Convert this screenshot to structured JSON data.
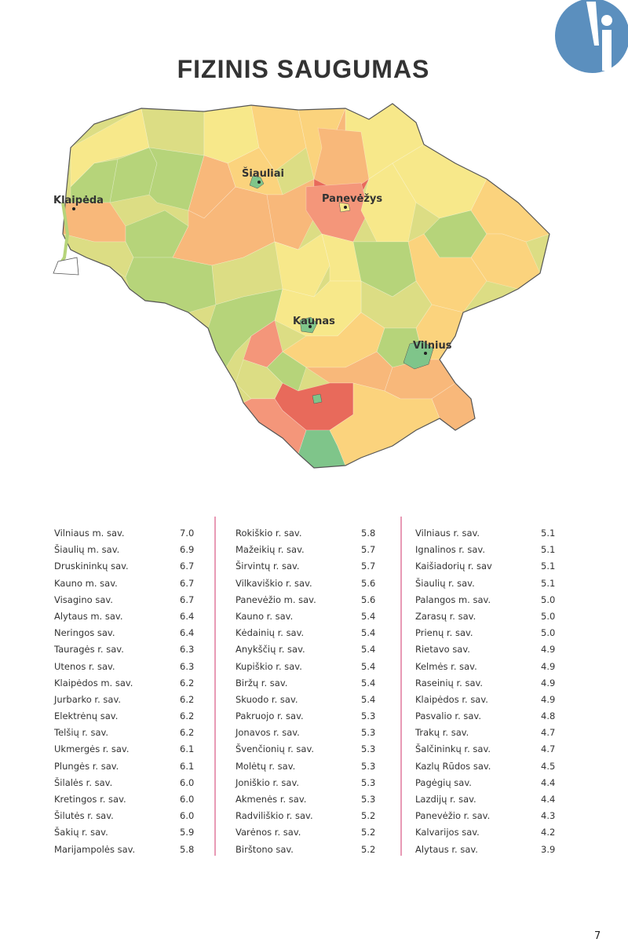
{
  "title": "FIZINIS SAUGUMAS",
  "page_number": "7",
  "colors": {
    "logo": "#5b8fbe",
    "divider": "#e89ab5",
    "scale": [
      "#e86a5b",
      "#f4967a",
      "#f8b87a",
      "#fbd37d",
      "#f7e88a",
      "#dcdd84",
      "#b6d47a",
      "#7fc58a"
    ]
  },
  "map": {
    "cities": [
      "Šiauliai",
      "Panevėžys",
      "Klaipėda",
      "Kaunas",
      "Vilnius"
    ]
  },
  "columns": [
    [
      {
        "name": "Vilniaus m. sav.",
        "value": "7.0"
      },
      {
        "name": "Šiaulių m. sav.",
        "value": "6.9"
      },
      {
        "name": "Druskininkų sav.",
        "value": "6.7"
      },
      {
        "name": "Kauno m. sav.",
        "value": "6.7"
      },
      {
        "name": "Visagino sav.",
        "value": "6.7"
      },
      {
        "name": "Alytaus m. sav.",
        "value": "6.4"
      },
      {
        "name": "Neringos sav.",
        "value": "6.4"
      },
      {
        "name": "Tauragės r. sav.",
        "value": "6.3"
      },
      {
        "name": "Utenos r. sav.",
        "value": "6.3"
      },
      {
        "name": "Klaipėdos m. sav.",
        "value": "6.2"
      },
      {
        "name": "Jurbarko r. sav.",
        "value": "6.2"
      },
      {
        "name": "Elektrėnų sav.",
        "value": "6.2"
      },
      {
        "name": "Telšių r. sav.",
        "value": "6.2"
      },
      {
        "name": "Ukmergės r. sav.",
        "value": "6.1"
      },
      {
        "name": "Plungės r. sav.",
        "value": "6.1"
      },
      {
        "name": "Šilalės r. sav.",
        "value": "6.0"
      },
      {
        "name": "Kretingos r. sav.",
        "value": "6.0"
      },
      {
        "name": "Šilutės r. sav.",
        "value": "6.0"
      },
      {
        "name": "Šakių r. sav.",
        "value": "5.9"
      },
      {
        "name": "Marijampolės sav.",
        "value": "5.8"
      }
    ],
    [
      {
        "name": "Rokiškio r. sav.",
        "value": "5.8"
      },
      {
        "name": "Mažeikių r. sav.",
        "value": "5.7"
      },
      {
        "name": "Širvintų r. sav.",
        "value": "5.7"
      },
      {
        "name": "Vilkaviškio r. sav.",
        "value": "5.6"
      },
      {
        "name": "Panevėžio m. sav.",
        "value": "5.6"
      },
      {
        "name": "Kauno r. sav.",
        "value": "5.4"
      },
      {
        "name": "Kėdainių r. sav.",
        "value": "5.4"
      },
      {
        "name": "Anykščių r. sav.",
        "value": "5.4"
      },
      {
        "name": "Kupiškio r. sav.",
        "value": "5.4"
      },
      {
        "name": "Biržų r. sav.",
        "value": "5.4"
      },
      {
        "name": "Skuodo r. sav.",
        "value": "5.4"
      },
      {
        "name": "Pakruojo r. sav.",
        "value": "5.3"
      },
      {
        "name": "Jonavos r. sav.",
        "value": "5.3"
      },
      {
        "name": "Švenčionių r. sav.",
        "value": "5.3"
      },
      {
        "name": "Molėtų r. sav.",
        "value": "5.3"
      },
      {
        "name": "Joniškio r. sav.",
        "value": "5.3"
      },
      {
        "name": "Akmenės r. sav.",
        "value": "5.3"
      },
      {
        "name": "Radviliškio r. sav.",
        "value": "5.2"
      },
      {
        "name": "Varėnos r. sav.",
        "value": "5.2"
      },
      {
        "name": "Birštono sav.",
        "value": "5.2"
      }
    ],
    [
      {
        "name": "Vilniaus r. sav.",
        "value": "5.1"
      },
      {
        "name": "Ignalinos r. sav.",
        "value": "5.1"
      },
      {
        "name": "Kaišiadorių r. sav",
        "value": "5.1"
      },
      {
        "name": "Šiaulių r. sav.",
        "value": "5.1"
      },
      {
        "name": "Palangos m. sav.",
        "value": "5.0"
      },
      {
        "name": "Zarasų r. sav.",
        "value": "5.0"
      },
      {
        "name": "Prienų r. sav.",
        "value": "5.0"
      },
      {
        "name": "Rietavo sav.",
        "value": "4.9"
      },
      {
        "name": "Kelmės r. sav.",
        "value": "4.9"
      },
      {
        "name": "Raseinių r. sav.",
        "value": "4.9"
      },
      {
        "name": "Klaipėdos r. sav.",
        "value": "4.9"
      },
      {
        "name": "Pasvalio r. sav.",
        "value": "4.8"
      },
      {
        "name": "Trakų r. sav.",
        "value": "4.7"
      },
      {
        "name": "Šalčininkų r. sav.",
        "value": "4.7"
      },
      {
        "name": "Kazlų Rūdos sav.",
        "value": "4.5"
      },
      {
        "name": "Pagėgių sav.",
        "value": "4.4"
      },
      {
        "name": "Lazdijų r. sav.",
        "value": "4.4"
      },
      {
        "name": "Panevėžio r. sav.",
        "value": "4.3"
      },
      {
        "name": "Kalvarijos sav.",
        "value": "4.2"
      },
      {
        "name": "Alytaus r. sav.",
        "value": "3.9"
      }
    ]
  ]
}
